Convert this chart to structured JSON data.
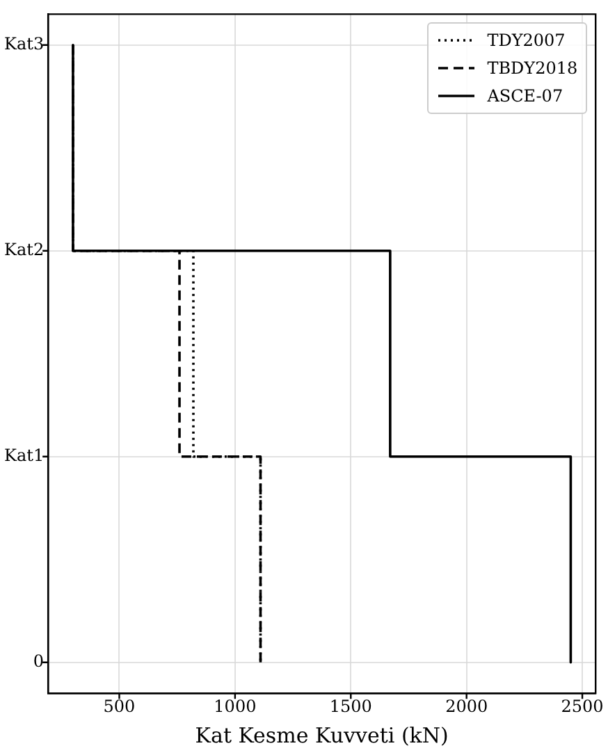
{
  "chart_data": {
    "type": "step",
    "orientation": "horizontal",
    "xlabel": "Kat Kesme Kuvveti (kN)",
    "categories": [
      "Kat3",
      "Kat2",
      "Kat1",
      "0"
    ],
    "xlim": [
      192.5,
      2557.5
    ],
    "xticks": [
      500,
      1000,
      1500,
      2000,
      2500
    ],
    "grid": true,
    "legend": "top right",
    "marker": "none",
    "series": [
      {
        "name": "TDY2007",
        "color": "#000000",
        "line_style": "dotted",
        "values": [
          300,
          820,
          1110,
          1110
        ]
      },
      {
        "name": "TBDY2018",
        "color": "#000000",
        "line_style": "dashed",
        "values": [
          300,
          760,
          1110,
          1110
        ]
      },
      {
        "name": "ASCE-07",
        "color": "#000000",
        "line_style": "solid",
        "values": [
          300,
          1670,
          2450,
          2450
        ]
      }
    ]
  }
}
